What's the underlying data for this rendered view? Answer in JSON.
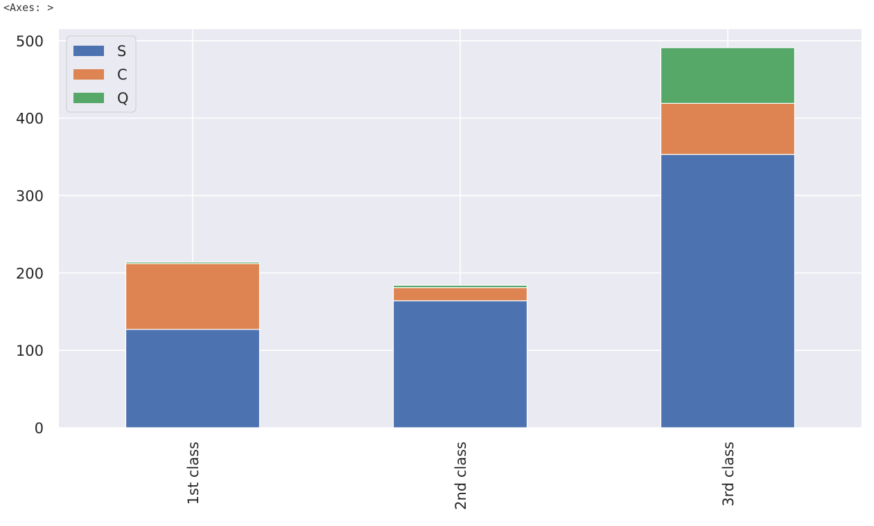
{
  "output_label": "<Axes: >",
  "chart_data": {
    "type": "bar",
    "stacked": true,
    "categories": [
      "1st class",
      "2nd class",
      "3rd class"
    ],
    "series": [
      {
        "name": "S",
        "values": [
          127,
          164,
          353
        ],
        "color": "#4c72b0"
      },
      {
        "name": "C",
        "values": [
          85,
          17,
          66
        ],
        "color": "#dd8452"
      },
      {
        "name": "Q",
        "values": [
          2,
          3,
          72
        ],
        "color": "#55a868"
      }
    ],
    "title": "",
    "xlabel": "",
    "ylabel": "",
    "ylim": [
      0,
      515
    ],
    "yticks": [
      0,
      100,
      200,
      300,
      400,
      500
    ],
    "grid": true,
    "legend_position": "top-left",
    "background": "#eaeaf2",
    "x_tick_rotation": "vertical"
  }
}
